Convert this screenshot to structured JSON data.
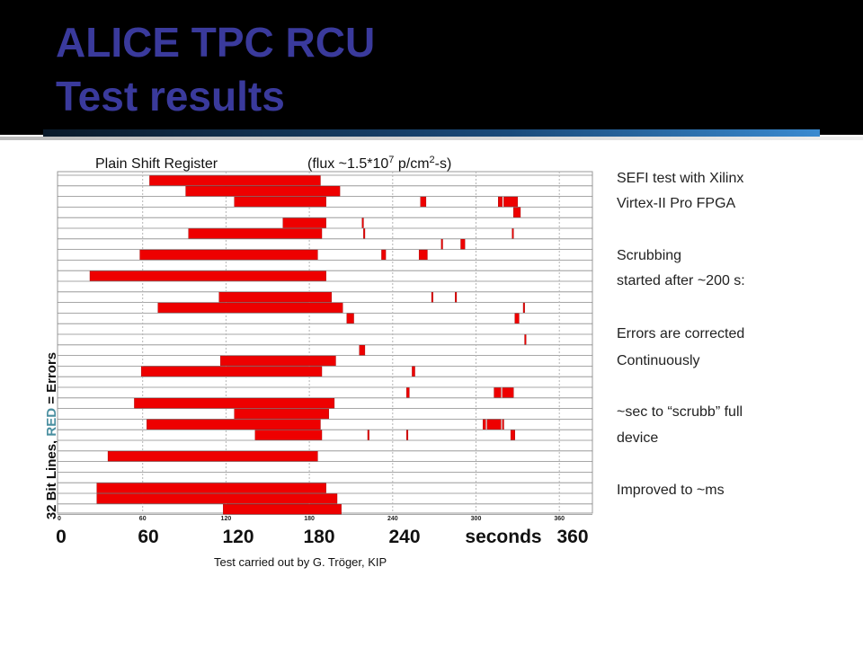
{
  "header": {
    "title_line1": "ALICE TPC RCU",
    "title_line2": "Test results"
  },
  "colors": {
    "title": "#3a3a9c",
    "error_red": "#ee0000",
    "red_word": "#4a8fa0"
  },
  "side_notes": [
    "SEFI test with Xilinx",
    "Virtex-II Pro FPGA",
    "Scrubbing",
    "started after ~200 s:",
    "Errors are corrected",
    "Continuously",
    "~sec to “scrubb” full",
    "device",
    "Improved to ~ms"
  ],
  "credit": "Test carried out by G. Tröger,  KIP",
  "chart_data": {
    "type": "bar",
    "title_left": "Plain Shift Register",
    "title_right_pre": "(flux ~1.5*10",
    "title_right_exp1": "7",
    "title_right_mid": " p/cm",
    "title_right_exp2": "2",
    "title_right_post": "-s)",
    "ylabel_pre": "32 Bit Lines, ",
    "ylabel_red": "RED",
    "ylabel_post": " = Errors",
    "xlim": [
      0,
      370
    ],
    "x_ticks_small": [
      "0",
      "60",
      "120",
      "180",
      "240",
      "300",
      "360"
    ],
    "x_ticks_large": [
      "0",
      "60",
      "120",
      "180",
      "240",
      "seconds",
      "360"
    ],
    "grid_x": [
      60,
      120,
      180,
      240,
      300,
      360
    ],
    "rows": 32,
    "error_segments": [
      {
        "row": 0,
        "start": 65,
        "end": 188
      },
      {
        "row": 1,
        "start": 91,
        "end": 202
      },
      {
        "row": 2,
        "start": 126,
        "end": 192
      },
      {
        "row": 2,
        "start": 260,
        "end": 264
      },
      {
        "row": 2,
        "start": 316,
        "end": 319
      },
      {
        "row": 2,
        "start": 320,
        "end": 330
      },
      {
        "row": 3,
        "start": 327,
        "end": 332
      },
      {
        "row": 4,
        "start": 161,
        "end": 192
      },
      {
        "row": 4,
        "start": 218,
        "end": 219
      },
      {
        "row": 5,
        "start": 93,
        "end": 189
      },
      {
        "row": 5,
        "start": 219,
        "end": 220
      },
      {
        "row": 5,
        "start": 326,
        "end": 327
      },
      {
        "row": 6,
        "start": 275,
        "end": 276
      },
      {
        "row": 6,
        "start": 289,
        "end": 292
      },
      {
        "row": 7,
        "start": 58,
        "end": 186
      },
      {
        "row": 7,
        "start": 232,
        "end": 235
      },
      {
        "row": 7,
        "start": 259,
        "end": 265
      },
      {
        "row": 9,
        "start": 22,
        "end": 192
      },
      {
        "row": 11,
        "start": 115,
        "end": 196
      },
      {
        "row": 11,
        "start": 268,
        "end": 269
      },
      {
        "row": 11,
        "start": 285,
        "end": 286
      },
      {
        "row": 12,
        "start": 71,
        "end": 204
      },
      {
        "row": 12,
        "start": 334,
        "end": 335
      },
      {
        "row": 13,
        "start": 207,
        "end": 212
      },
      {
        "row": 13,
        "start": 328,
        "end": 331
      },
      {
        "row": 15,
        "start": 335,
        "end": 336
      },
      {
        "row": 16,
        "start": 216,
        "end": 220
      },
      {
        "row": 17,
        "start": 116,
        "end": 199
      },
      {
        "row": 18,
        "start": 59,
        "end": 189
      },
      {
        "row": 18,
        "start": 254,
        "end": 256
      },
      {
        "row": 20,
        "start": 250,
        "end": 252
      },
      {
        "row": 20,
        "start": 313,
        "end": 318
      },
      {
        "row": 20,
        "start": 319,
        "end": 327
      },
      {
        "row": 21,
        "start": 54,
        "end": 198
      },
      {
        "row": 22,
        "start": 126,
        "end": 194
      },
      {
        "row": 23,
        "start": 63,
        "end": 188
      },
      {
        "row": 23,
        "start": 305,
        "end": 307
      },
      {
        "row": 23,
        "start": 308,
        "end": 318
      },
      {
        "row": 23,
        "start": 319,
        "end": 320
      },
      {
        "row": 24,
        "start": 141,
        "end": 189
      },
      {
        "row": 24,
        "start": 222,
        "end": 223
      },
      {
        "row": 24,
        "start": 250,
        "end": 251
      },
      {
        "row": 24,
        "start": 325,
        "end": 328
      },
      {
        "row": 26,
        "start": 35,
        "end": 186
      },
      {
        "row": 29,
        "start": 27,
        "end": 192
      },
      {
        "row": 30,
        "start": 27,
        "end": 200
      },
      {
        "row": 31,
        "start": 118,
        "end": 203
      }
    ]
  }
}
